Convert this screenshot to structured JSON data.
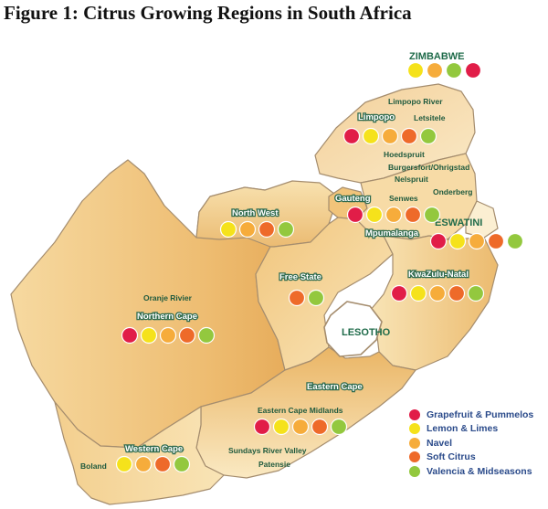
{
  "title": "Figure 1: Citrus Growing Regions in South Africa",
  "colors": {
    "grapefruit_pummelos": "#e11d48",
    "lemon_limes": "#f5e21b",
    "navel": "#f6ac3b",
    "soft_citrus": "#ee6a2a",
    "valencia_midseasons": "#93c83e",
    "land_light": "#fae7b8",
    "land_dark": "#eab669",
    "border": "#a58d6e"
  },
  "countries": {
    "zimbabwe": "ZIMBABWE",
    "eswatini": "ESWATINI",
    "lesotho": "LESOTHO"
  },
  "provinces": {
    "limpopo": "Limpopo",
    "gauteng": "Gauteng",
    "mpumalanga": "Mpumalanga",
    "north_west": "North West",
    "free_state": "Free State",
    "kwazulu_natal": "KwaZulu-Natal",
    "northern_cape": "Northern Cape",
    "eastern_cape": "Eastern Cape",
    "western_cape": "Western Cape"
  },
  "places": {
    "limpopo_river": "Limpopo River",
    "letsitele": "Letsitele",
    "hoedspruit": "Hoedspruit",
    "burgersfort_ohrigstad": "Burgersfort/Ohrigstad",
    "nelspruit": "Nelspruit",
    "onderberg": "Onderberg",
    "senwes": "Senwes",
    "oranje_rivier": "Oranje Rivier",
    "eastern_cape_midlands": "Eastern Cape Midlands",
    "sundays_river_valley": "Sundays River Valley",
    "patensie": "Patensie",
    "boland": "Boland"
  },
  "legend": [
    {
      "label": "Grapefruit & Pummelos",
      "color": "#e11d48"
    },
    {
      "label": "Lemon & Limes",
      "color": "#f5e21b"
    },
    {
      "label": "Navel",
      "color": "#f6ac3b"
    },
    {
      "label": "Soft Citrus",
      "color": "#ee6a2a"
    },
    {
      "label": "Valencia & Midseasons",
      "color": "#93c83e"
    }
  ]
}
